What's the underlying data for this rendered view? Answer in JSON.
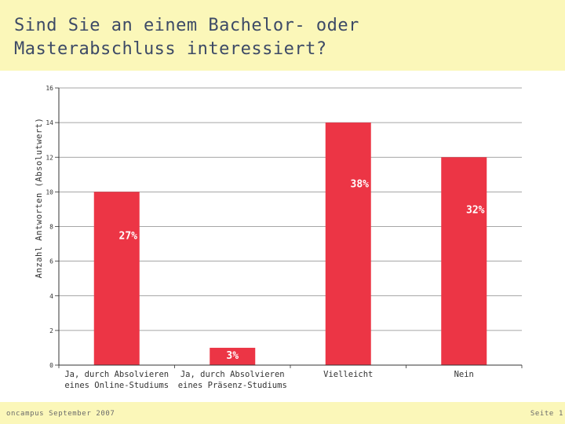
{
  "slide": {
    "title": "Sind Sie an einem Bachelor- oder\nMasterabschluss interessiert?",
    "footer_left": "oncampus September 2007",
    "footer_right": "Seite 1"
  },
  "colors": {
    "bar": "#ec3545",
    "header_band": "#fbf7b9",
    "grid": "#888888"
  },
  "chart_data": {
    "type": "bar",
    "categories": [
      "Ja, durch Absolvieren\neines Online-Studiums",
      "Ja, durch Absolvieren\neines Präsenz-Studiums",
      "Vielleicht",
      "Nein"
    ],
    "values": [
      10,
      1,
      14,
      12
    ],
    "data_labels": [
      "27%",
      "3%",
      "38%",
      "32%"
    ],
    "ylabel": "Anzahl Antworten (Absolutwert)",
    "ylim": [
      0,
      16
    ],
    "yticks": [
      0,
      2,
      4,
      6,
      8,
      10,
      12,
      14,
      16
    ],
    "grid": true,
    "legend": "none"
  }
}
